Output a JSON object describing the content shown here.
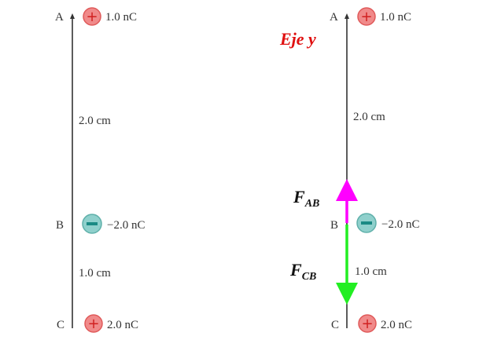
{
  "colors": {
    "positive_charge": "#f08a8a",
    "negative_charge": "#8fd0cc",
    "force_ab": "#ff00ff",
    "force_cb": "#22ee22",
    "axis_label": "#e01010"
  },
  "left": {
    "points": [
      {
        "letter": "A",
        "sign": "+",
        "charge": "1.0 nC"
      },
      {
        "letter": "B",
        "sign": "−",
        "charge": "−2.0 nC"
      },
      {
        "letter": "C",
        "sign": "+",
        "charge": "2.0 nC"
      }
    ],
    "dist_ab": "2.0 cm",
    "dist_bc": "1.0 cm"
  },
  "right": {
    "points": [
      {
        "letter": "A",
        "sign": "+",
        "charge": "1.0 nC"
      },
      {
        "letter": "B",
        "sign": "−",
        "charge": "−2.0 nC"
      },
      {
        "letter": "C",
        "sign": "+",
        "charge": "2.0 nC"
      }
    ],
    "dist_ab": "2.0 cm",
    "dist_bc": "1.0 cm",
    "axis_label": "Eje y",
    "force_ab": {
      "main": "F",
      "sub": "AB"
    },
    "force_cb": {
      "main": "F",
      "sub": "CB"
    }
  }
}
